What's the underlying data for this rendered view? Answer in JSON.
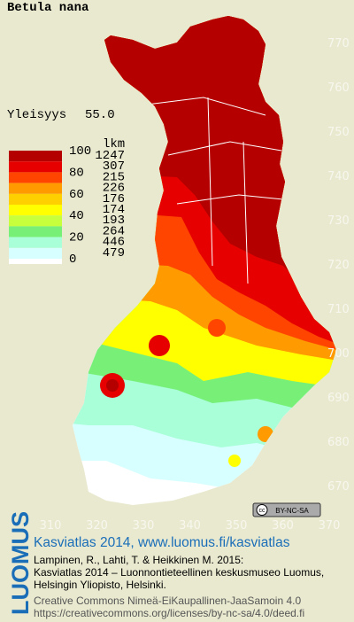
{
  "title": "Betula nana",
  "frequency": {
    "label": "Yleisyys",
    "value": "55.0"
  },
  "legend": {
    "classes": [
      100,
      80,
      60,
      40,
      20,
      0
    ],
    "count_header": "lkm",
    "counts": [
      1247,
      307,
      215,
      226,
      176,
      174,
      193,
      264,
      446,
      479
    ],
    "colors": [
      "#b50000",
      "#e60000",
      "#ff4500",
      "#ff9a00",
      "#ffd000",
      "#ffff00",
      "#c8ff3c",
      "#78f078",
      "#a8ffd8",
      "#d8ffff",
      "#ffffff"
    ]
  },
  "x_axis": [
    310,
    320,
    330,
    340,
    350,
    360,
    370
  ],
  "y_axis": [
    770,
    760,
    750,
    740,
    730,
    720,
    710,
    700,
    690,
    680,
    670
  ],
  "badge": "BY-NC-SA",
  "footer": {
    "brand": "LUOMUS",
    "headline": "Kasviatlas 2014, www.luomus.fi/kasviatlas",
    "citation": [
      "Lampinen, R., Lahti, T. & Heikkinen M. 2015:",
      "Kasviatlas 2014 – Luonnontieteellinen keskusmuseo Luomus,",
      "Helsingin Yliopisto, Helsinki."
    ],
    "license": [
      "Creative Commons Nimeä-EiKaupallinen-JaaSamoin 4.0",
      "https://creativecommons.org/licenses/by-nc-sa/4.0/deed.fi"
    ]
  }
}
